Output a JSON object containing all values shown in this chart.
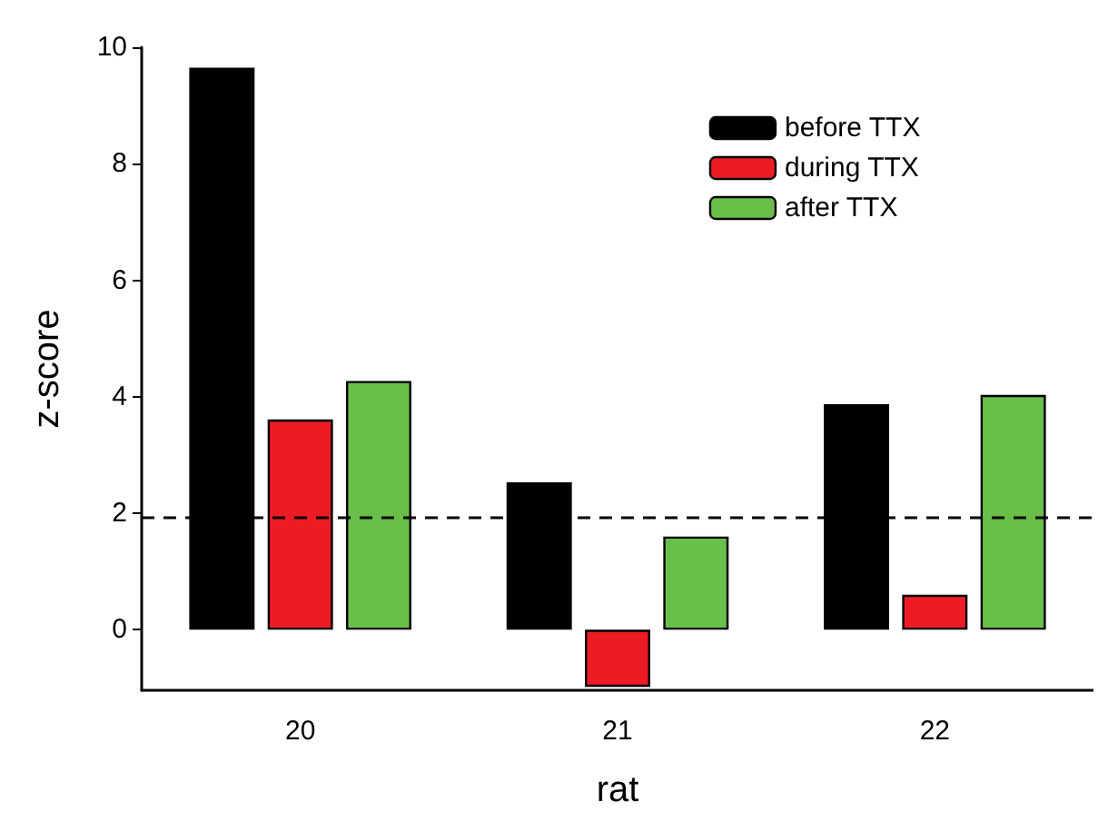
{
  "chart_data": {
    "type": "bar",
    "xlabel": "rat",
    "ylabel": "z-score",
    "categories": [
      "20",
      "21",
      "22"
    ],
    "series": [
      {
        "name": "before TTX",
        "color": "#000000",
        "values": [
          9.65,
          2.53,
          3.87
        ]
      },
      {
        "name": "during TTX",
        "color": "#ed1c24",
        "values": [
          3.61,
          -0.98,
          0.6
        ]
      },
      {
        "name": "after TTX",
        "color": "#6abf4b",
        "values": [
          4.27,
          1.6,
          4.03
        ]
      }
    ],
    "ylim": [
      -1.04,
      10
    ],
    "yticks": [
      0,
      2,
      4,
      6,
      8,
      10
    ],
    "grid": false,
    "legend": "top right",
    "ref_lines": [
      {
        "axis": "y",
        "value": 1.94,
        "color": "#000000",
        "line_style": "dashed"
      }
    ]
  }
}
